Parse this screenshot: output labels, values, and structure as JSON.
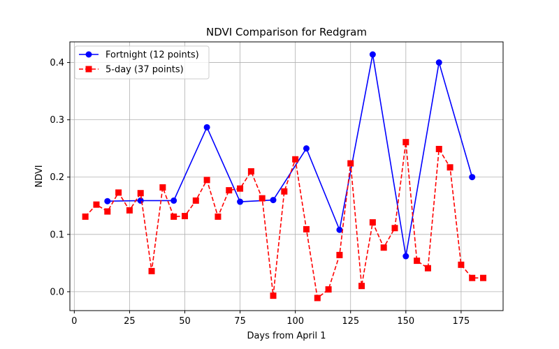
{
  "chart_data": {
    "type": "line",
    "title": "NDVI Comparison for Redgram",
    "xlabel": "Days from April 1",
    "ylabel": "NDVI",
    "xlim": [
      -2,
      194
    ],
    "ylim": [
      -0.033,
      0.436
    ],
    "x_ticks": [
      0,
      25,
      50,
      75,
      100,
      125,
      150,
      175
    ],
    "y_ticks": [
      0.0,
      0.1,
      0.2,
      0.3,
      0.4
    ],
    "x_tick_labels": [
      "0",
      "25",
      "50",
      "75",
      "100",
      "125",
      "150",
      "175"
    ],
    "y_tick_labels": [
      "0.0",
      "0.1",
      "0.2",
      "0.3",
      "0.4"
    ],
    "grid": true,
    "legend_position": "upper-left",
    "series": [
      {
        "name": "Fortnight (12 points)",
        "color": "#0000ff",
        "marker": "circle",
        "line_style": "solid",
        "x": [
          15,
          30,
          45,
          60,
          75,
          90,
          105,
          120,
          135,
          150,
          165,
          180
        ],
        "y": [
          0.158,
          0.159,
          0.159,
          0.287,
          0.157,
          0.16,
          0.25,
          0.108,
          0.414,
          0.062,
          0.4,
          0.2
        ]
      },
      {
        "name": "5-day (37 points)",
        "color": "#ff0000",
        "marker": "square",
        "line_style": "dashed",
        "x": [
          5,
          10,
          15,
          20,
          25,
          30,
          35,
          40,
          45,
          50,
          55,
          60,
          65,
          70,
          75,
          80,
          85,
          90,
          95,
          100,
          105,
          110,
          115,
          120,
          125,
          130,
          135,
          140,
          145,
          150,
          155,
          160,
          165,
          170,
          175,
          180,
          185
        ],
        "y": [
          0.131,
          0.152,
          0.14,
          0.173,
          0.142,
          0.172,
          0.036,
          0.182,
          0.131,
          0.132,
          0.159,
          0.195,
          0.131,
          0.177,
          0.18,
          0.21,
          0.163,
          -0.007,
          0.175,
          0.231,
          0.109,
          -0.011,
          0.004,
          0.064,
          0.224,
          0.01,
          0.121,
          0.077,
          0.111,
          0.261,
          0.054,
          0.041,
          0.249,
          0.217,
          0.047,
          0.024,
          0.024
        ]
      }
    ]
  }
}
